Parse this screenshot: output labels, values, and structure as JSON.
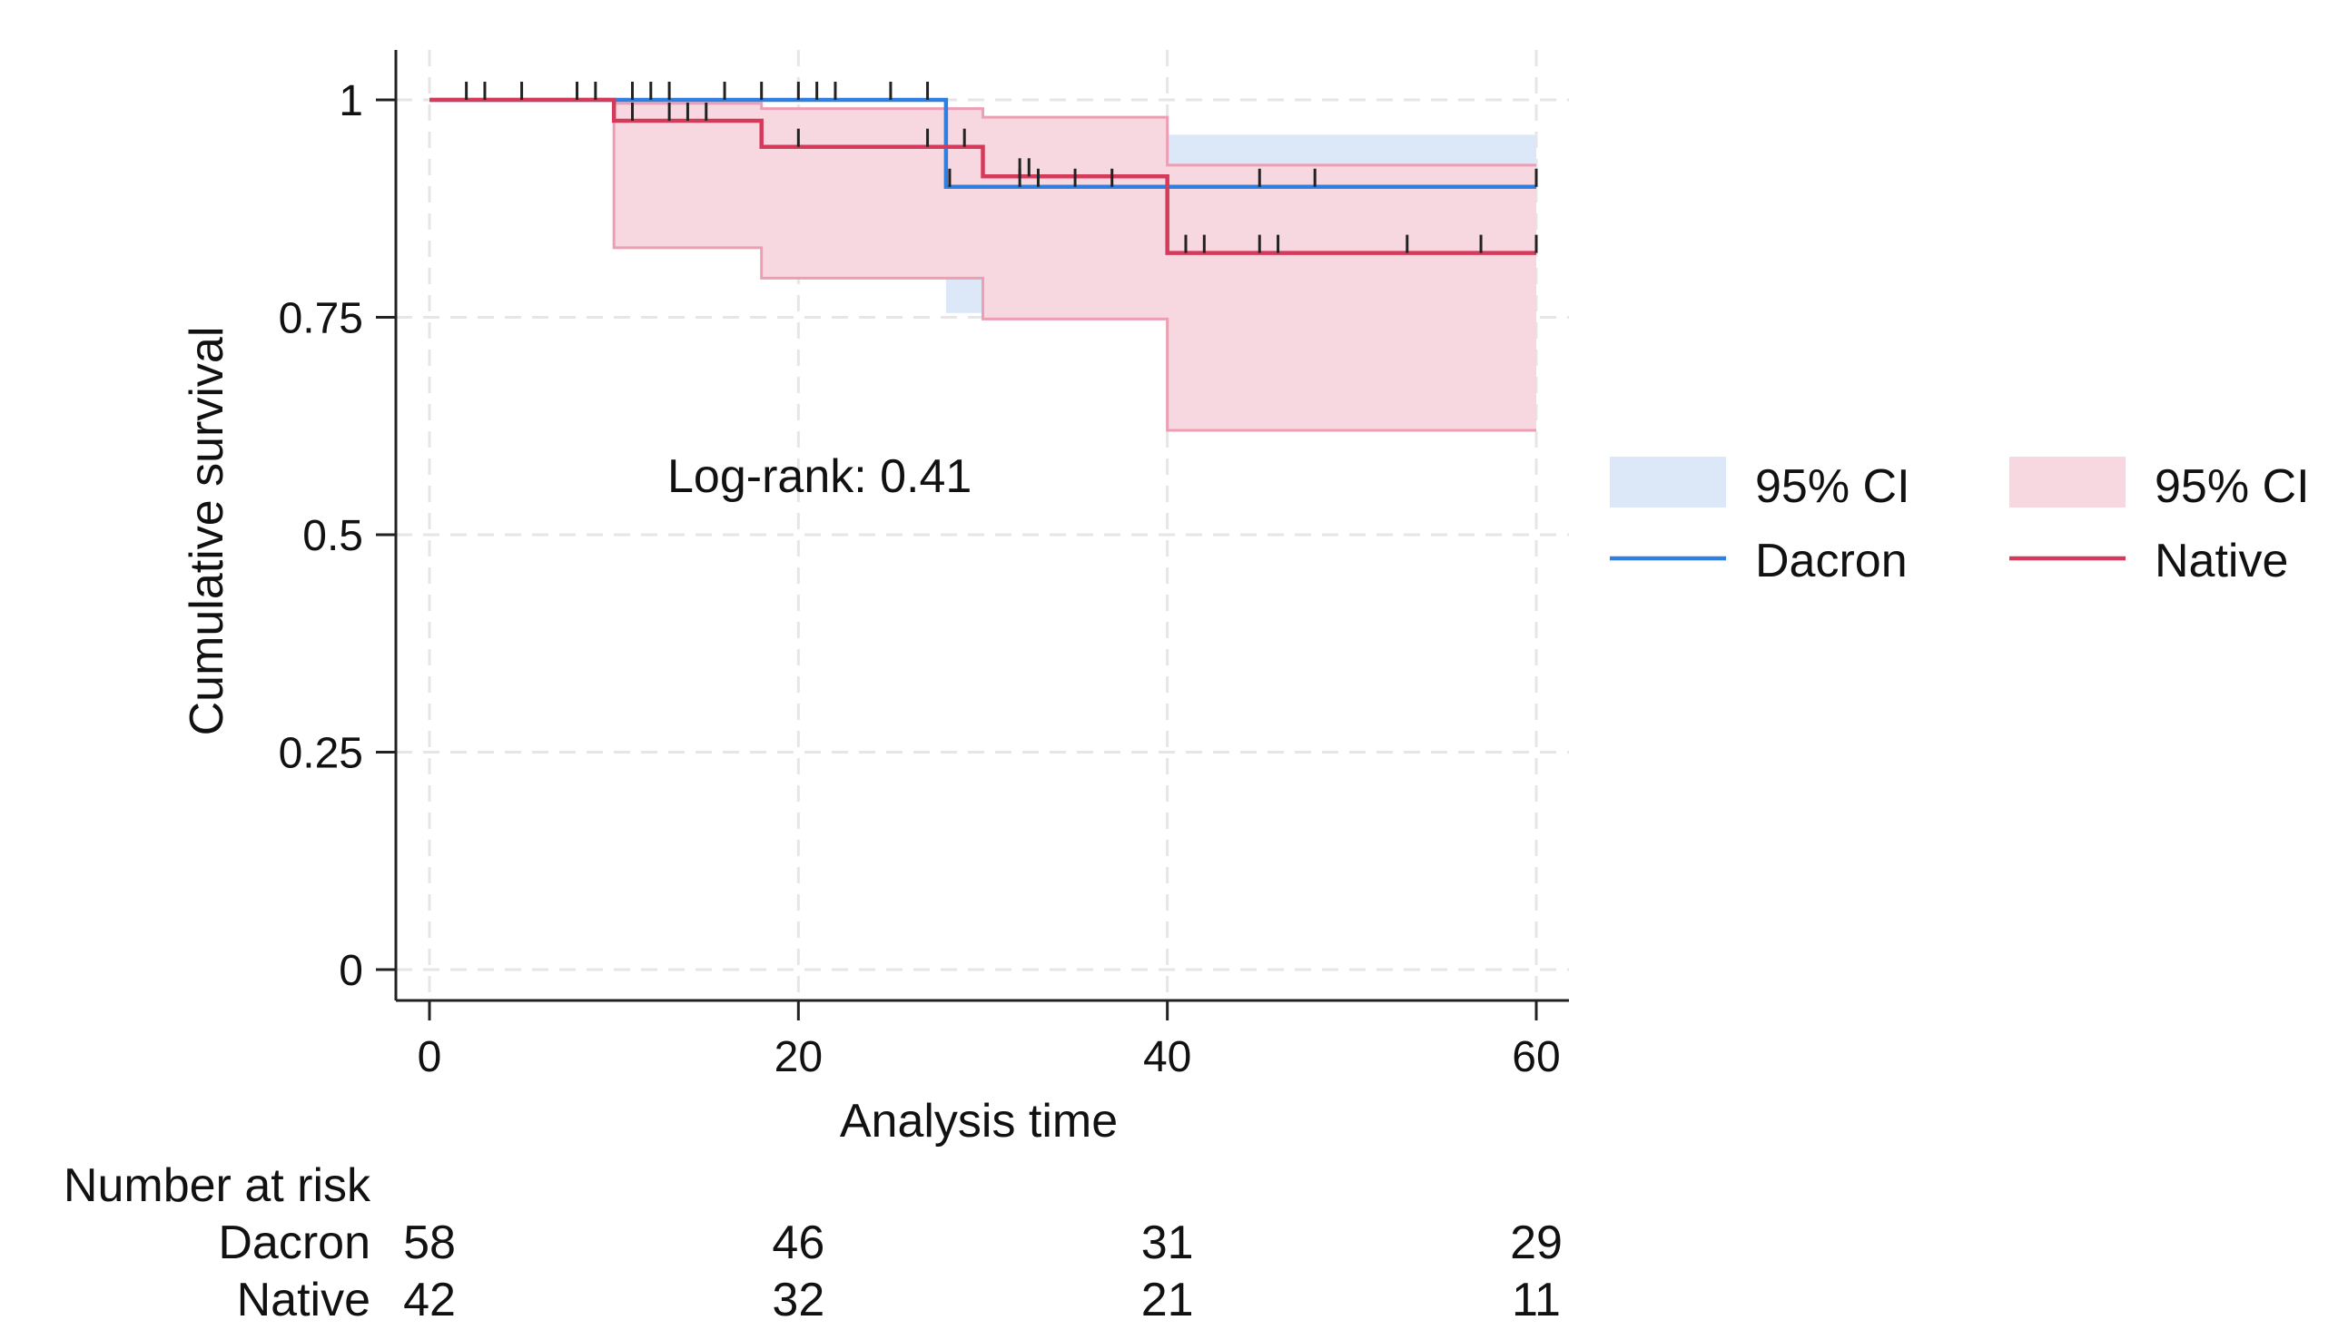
{
  "chart_data": {
    "type": "line",
    "subtype": "kaplan-meier survival with 95% confidence bands",
    "xlabel": "Analysis time",
    "ylabel": "Cumulative survival",
    "xlim": [
      0,
      60
    ],
    "ylim": [
      0,
      1
    ],
    "x_ticks": [
      0,
      20,
      40,
      60
    ],
    "y_ticks": [
      0,
      0.25,
      0.5,
      0.75,
      1
    ],
    "y_tick_labels": [
      "0",
      "0.25",
      "0.5",
      "0.75",
      "1"
    ],
    "grid": true,
    "annotation": "Log-rank: 0.41",
    "series": [
      {
        "name": "Dacron",
        "color": "#2f7fe0",
        "ci_color": "#dce8f8",
        "ci_label": "95% CI",
        "steps": [
          [
            0,
            1.0
          ],
          [
            28,
            0.9
          ]
        ],
        "ci_steps": [
          [
            0,
            1.0,
            1.0
          ],
          [
            28,
            0.755,
            0.96
          ],
          [
            30,
            0.78,
            0.96
          ],
          [
            40,
            0.78,
            0.96
          ]
        ],
        "censored": [
          2,
          3,
          5,
          8,
          9,
          11,
          12,
          13,
          16,
          18,
          20,
          21,
          22,
          25,
          27,
          28.2,
          32,
          33,
          35,
          37,
          45,
          48,
          60
        ]
      },
      {
        "name": "Native",
        "color": "#d63a5a",
        "ci_color": "#f8d8e0",
        "ci_label": "95% CI",
        "steps": [
          [
            0,
            1.0
          ],
          [
            10,
            0.976
          ],
          [
            18,
            0.946
          ],
          [
            30,
            0.912
          ],
          [
            40,
            0.824
          ]
        ],
        "ci_steps": [
          [
            0,
            1.0,
            1.0
          ],
          [
            10,
            0.83,
            0.996
          ],
          [
            18,
            0.795,
            0.99
          ],
          [
            30,
            0.748,
            0.98
          ],
          [
            40,
            0.62,
            0.925
          ]
        ],
        "censored": [
          11,
          13,
          14,
          15,
          20,
          27,
          29,
          32,
          32.5,
          41,
          42,
          45,
          46,
          53,
          57,
          60
        ]
      }
    ],
    "legend": [
      {
        "label": "95% CI",
        "kind": "area",
        "series": "Dacron"
      },
      {
        "label": "95% CI",
        "kind": "area",
        "series": "Native"
      },
      {
        "label": "Dacron",
        "kind": "line",
        "series": "Dacron"
      },
      {
        "label": "Native",
        "kind": "line",
        "series": "Native"
      }
    ],
    "legend_position": "right",
    "risk_table": {
      "title": "Number at risk",
      "times": [
        0,
        20,
        40,
        60
      ],
      "rows": [
        {
          "label": "Dacron",
          "values": [
            "58",
            "46",
            "31",
            "29"
          ]
        },
        {
          "label": "Native",
          "values": [
            "42",
            "32",
            "21",
            "11"
          ]
        }
      ]
    }
  }
}
